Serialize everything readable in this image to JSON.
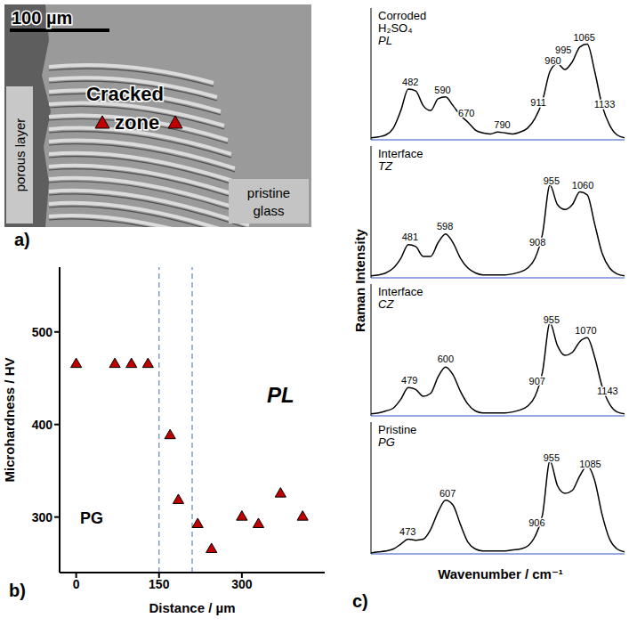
{
  "image_panel": {
    "letter": "a)",
    "scale_bar": "100 µm",
    "labels": {
      "left": "porous layer",
      "center": "Cracked zone",
      "right": "pristine glass"
    }
  },
  "chart_data": [
    {
      "letter": "b)",
      "type": "scatter",
      "x": [
        0,
        70,
        100,
        130,
        170,
        185,
        220,
        245,
        300,
        330,
        370,
        410
      ],
      "values": [
        465,
        465,
        465,
        465,
        388,
        318,
        292,
        265,
        300,
        292,
        325,
        300
      ],
      "color": "#c00000",
      "marker": "triangle",
      "xlabel": "Distance / µm",
      "ylabel": "Microhardness / HV",
      "xlim": [
        -30,
        450
      ],
      "xticks": [
        0,
        150,
        300
      ],
      "ylim": [
        240,
        570
      ],
      "yticks": [
        300,
        400,
        500
      ],
      "reference_lines": [
        150,
        210
      ],
      "annotations": [
        "PG",
        "PL"
      ]
    },
    {
      "letter": "c)",
      "type": "line",
      "xlabel": "Wavenumber / cm⁻¹",
      "ylabel": "Raman Intensity",
      "tick_labels": false,
      "xlim": [
        350,
        1200
      ],
      "ylim": [
        0,
        1.35
      ],
      "x": [
        350,
        375,
        400,
        425,
        450,
        475,
        500,
        525,
        550,
        575,
        600,
        625,
        650,
        675,
        700,
        725,
        750,
        775,
        800,
        825,
        850,
        875,
        900,
        925,
        950,
        975,
        1000,
        1025,
        1050,
        1075,
        1100,
        1125,
        1150,
        1175,
        1200
      ],
      "series": [
        {
          "name": "Corroded H₂SO₄",
          "zone": "PL",
          "color": "#000000",
          "values": [
            0.02,
            0.03,
            0.05,
            0.12,
            0.3,
            0.52,
            0.5,
            0.35,
            0.3,
            0.42,
            0.44,
            0.35,
            0.25,
            0.18,
            0.1,
            0.07,
            0.06,
            0.08,
            0.07,
            0.06,
            0.08,
            0.12,
            0.22,
            0.4,
            0.7,
            0.78,
            0.72,
            0.8,
            0.95,
            0.98,
            0.7,
            0.35,
            0.15,
            0.05,
            0.02
          ],
          "peaks": [
            482,
            590,
            670,
            790,
            911,
            960,
            995,
            1065,
            1133
          ]
        },
        {
          "name": "Interface",
          "zone": "TZ",
          "color": "#000000",
          "values": [
            0.02,
            0.03,
            0.05,
            0.1,
            0.2,
            0.34,
            0.32,
            0.22,
            0.22,
            0.36,
            0.45,
            0.36,
            0.2,
            0.1,
            0.05,
            0.03,
            0.03,
            0.03,
            0.03,
            0.04,
            0.06,
            0.1,
            0.2,
            0.45,
            0.95,
            0.75,
            0.7,
            0.75,
            0.88,
            0.85,
            0.55,
            0.25,
            0.1,
            0.04,
            0.02
          ],
          "peaks": [
            481,
            598,
            908,
            955,
            1060
          ]
        },
        {
          "name": "Interface",
          "zone": "CZ",
          "color": "#000000",
          "values": [
            0.02,
            0.03,
            0.05,
            0.08,
            0.17,
            0.29,
            0.27,
            0.2,
            0.23,
            0.4,
            0.5,
            0.42,
            0.25,
            0.12,
            0.05,
            0.03,
            0.03,
            0.03,
            0.03,
            0.04,
            0.06,
            0.1,
            0.2,
            0.45,
            0.95,
            0.72,
            0.62,
            0.65,
            0.76,
            0.8,
            0.6,
            0.3,
            0.12,
            0.04,
            0.02
          ],
          "peaks": [
            479,
            600,
            907,
            955,
            1070,
            1143
          ]
        },
        {
          "name": "Pristine",
          "zone": "PG",
          "color": "#000000",
          "values": [
            0.01,
            0.02,
            0.03,
            0.05,
            0.1,
            0.15,
            0.14,
            0.15,
            0.25,
            0.43,
            0.55,
            0.5,
            0.3,
            0.12,
            0.05,
            0.03,
            0.03,
            0.03,
            0.03,
            0.04,
            0.05,
            0.08,
            0.18,
            0.4,
            0.95,
            0.7,
            0.62,
            0.65,
            0.8,
            0.9,
            0.75,
            0.4,
            0.15,
            0.05,
            0.02
          ],
          "peaks": [
            473,
            607,
            906,
            955,
            1085
          ]
        }
      ]
    }
  ]
}
